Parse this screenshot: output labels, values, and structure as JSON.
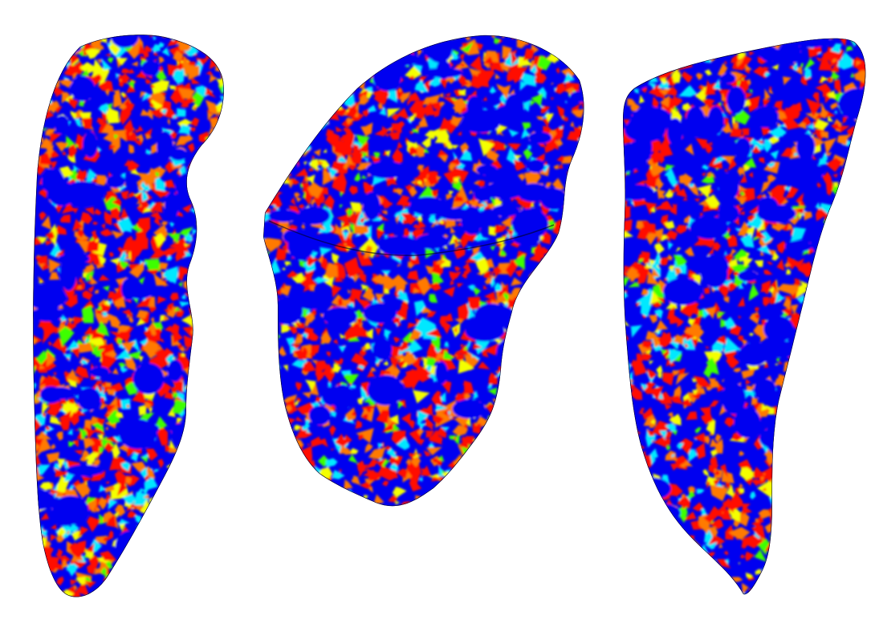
{
  "scene": {
    "background": "#ffffff",
    "palette": {
      "base": "#0000f0",
      "red": "#ff0a00",
      "orange": "#ff7a00",
      "yellow": "#f4ff00",
      "green": "#3cff00",
      "cyan": "#00e8ff"
    },
    "objects": [
      {
        "name": "mesh-view-left",
        "seed": 11,
        "red_share": 0.55
      },
      {
        "name": "mesh-view-center",
        "seed": 29,
        "red_share": 0.5
      },
      {
        "name": "mesh-view-right",
        "seed": 47,
        "red_share": 0.42
      }
    ]
  }
}
